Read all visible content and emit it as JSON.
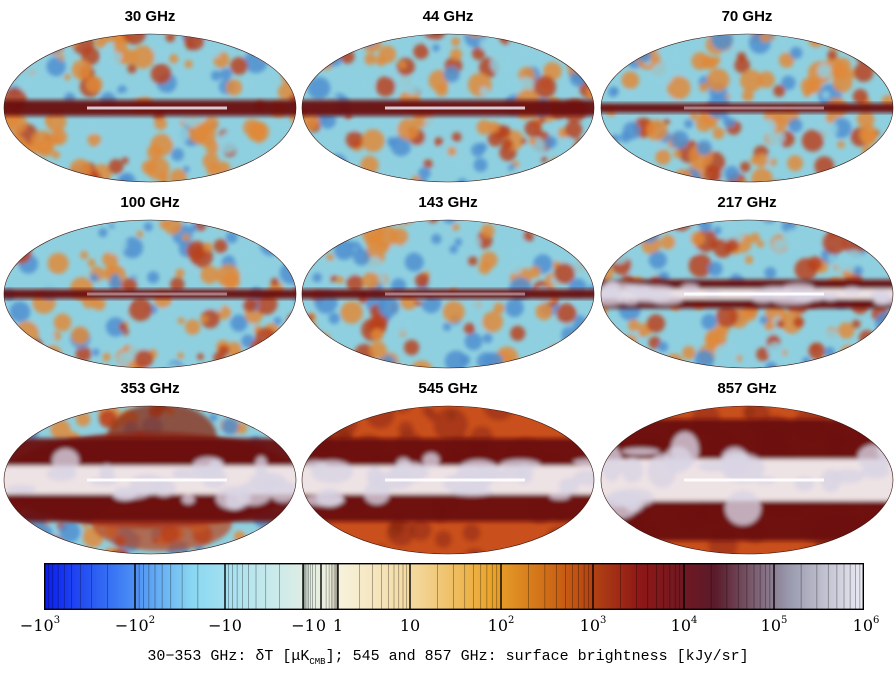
{
  "panels": [
    {
      "id": "p30",
      "title": "30 GHz",
      "base": "cmb",
      "band": "low"
    },
    {
      "id": "p44",
      "title": "44 GHz",
      "base": "cmb",
      "band": "low"
    },
    {
      "id": "p70",
      "title": "70 GHz",
      "base": "cmb",
      "band": "thin"
    },
    {
      "id": "p100",
      "title": "100 GHz",
      "base": "cmb",
      "band": "thin"
    },
    {
      "id": "p143",
      "title": "143 GHz",
      "base": "cmb",
      "band": "thin"
    },
    {
      "id": "p217",
      "title": "217 GHz",
      "base": "cmb",
      "band": "mid"
    },
    {
      "id": "p353",
      "title": "353 GHz",
      "base": "mix",
      "band": "wide"
    },
    {
      "id": "p545",
      "title": "545 GHz",
      "base": "dust",
      "band": "wide"
    },
    {
      "id": "p857",
      "title": "857 GHz",
      "base": "dust",
      "band": "widest"
    }
  ],
  "colorbar": {
    "ticks": [
      {
        "base": "−10",
        "exp": "3"
      },
      {
        "base": "−10",
        "exp": "2"
      },
      {
        "base": "−10",
        "exp": ""
      },
      {
        "base": "−1",
        "exp": ""
      },
      {
        "base": "0",
        "exp": ""
      },
      {
        "base": "1",
        "exp": ""
      },
      {
        "base": "10",
        "exp": ""
      },
      {
        "base": "10",
        "exp": "2"
      },
      {
        "base": "10",
        "exp": "3"
      },
      {
        "base": "10",
        "exp": "4"
      },
      {
        "base": "10",
        "exp": "5"
      },
      {
        "base": "10",
        "exp": "6"
      }
    ],
    "stops": [
      "#0a1cf0",
      "#3d7cf4",
      "#8ad8f2",
      "#c6e9ec",
      "#f7f1da",
      "#f3d79a",
      "#eaa42a",
      "#c75b12",
      "#8e1717",
      "#5a1a2a",
      "#9a9aae",
      "#ececf6"
    ],
    "caption_pre": "30−353 GHz: δT [μK",
    "caption_sub": "CMB",
    "caption_post": "]; 545 and 857 GHz: surface brightness [kJy/sr]"
  },
  "colors": {
    "cmb_blue": "#4f8fd0",
    "cmb_cyan": "#8fd0e0",
    "cmb_orange": "#e08a3a",
    "cmb_red": "#b8421e",
    "band_dark": "#6a0f12",
    "band_white": "#f4eef0",
    "dust_base": "#c9501c",
    "dust_dark": "#8a2614"
  }
}
